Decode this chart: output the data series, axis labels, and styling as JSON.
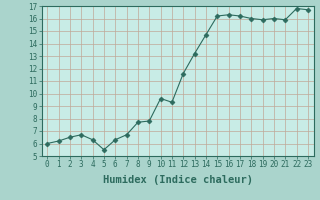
{
  "xlabel": "Humidex (Indice chaleur)",
  "x": [
    0,
    1,
    2,
    3,
    4,
    5,
    6,
    7,
    8,
    9,
    10,
    11,
    12,
    13,
    14,
    15,
    16,
    17,
    18,
    19,
    20,
    21,
    22,
    23
  ],
  "y": [
    6.0,
    6.2,
    6.5,
    6.7,
    6.3,
    5.5,
    6.3,
    6.7,
    7.7,
    7.8,
    9.6,
    9.3,
    11.6,
    13.2,
    14.7,
    16.2,
    16.3,
    16.2,
    16.0,
    15.9,
    16.0,
    15.9,
    16.8,
    16.7
  ],
  "line_color": "#2d6b5e",
  "marker": "D",
  "marker_size": 2.5,
  "bg_color": "#aad4cc",
  "plot_bg_color": "#c8ece6",
  "grid_color": "#c0a898",
  "ylim": [
    5,
    17
  ],
  "xlim": [
    -0.5,
    23.5
  ],
  "yticks": [
    5,
    6,
    7,
    8,
    9,
    10,
    11,
    12,
    13,
    14,
    15,
    16,
    17
  ],
  "xticks": [
    0,
    1,
    2,
    3,
    4,
    5,
    6,
    7,
    8,
    9,
    10,
    11,
    12,
    13,
    14,
    15,
    16,
    17,
    18,
    19,
    20,
    21,
    22,
    23
  ],
  "tick_color": "#2d6b5e",
  "label_fontsize": 5.5,
  "xlabel_fontsize": 7.5
}
